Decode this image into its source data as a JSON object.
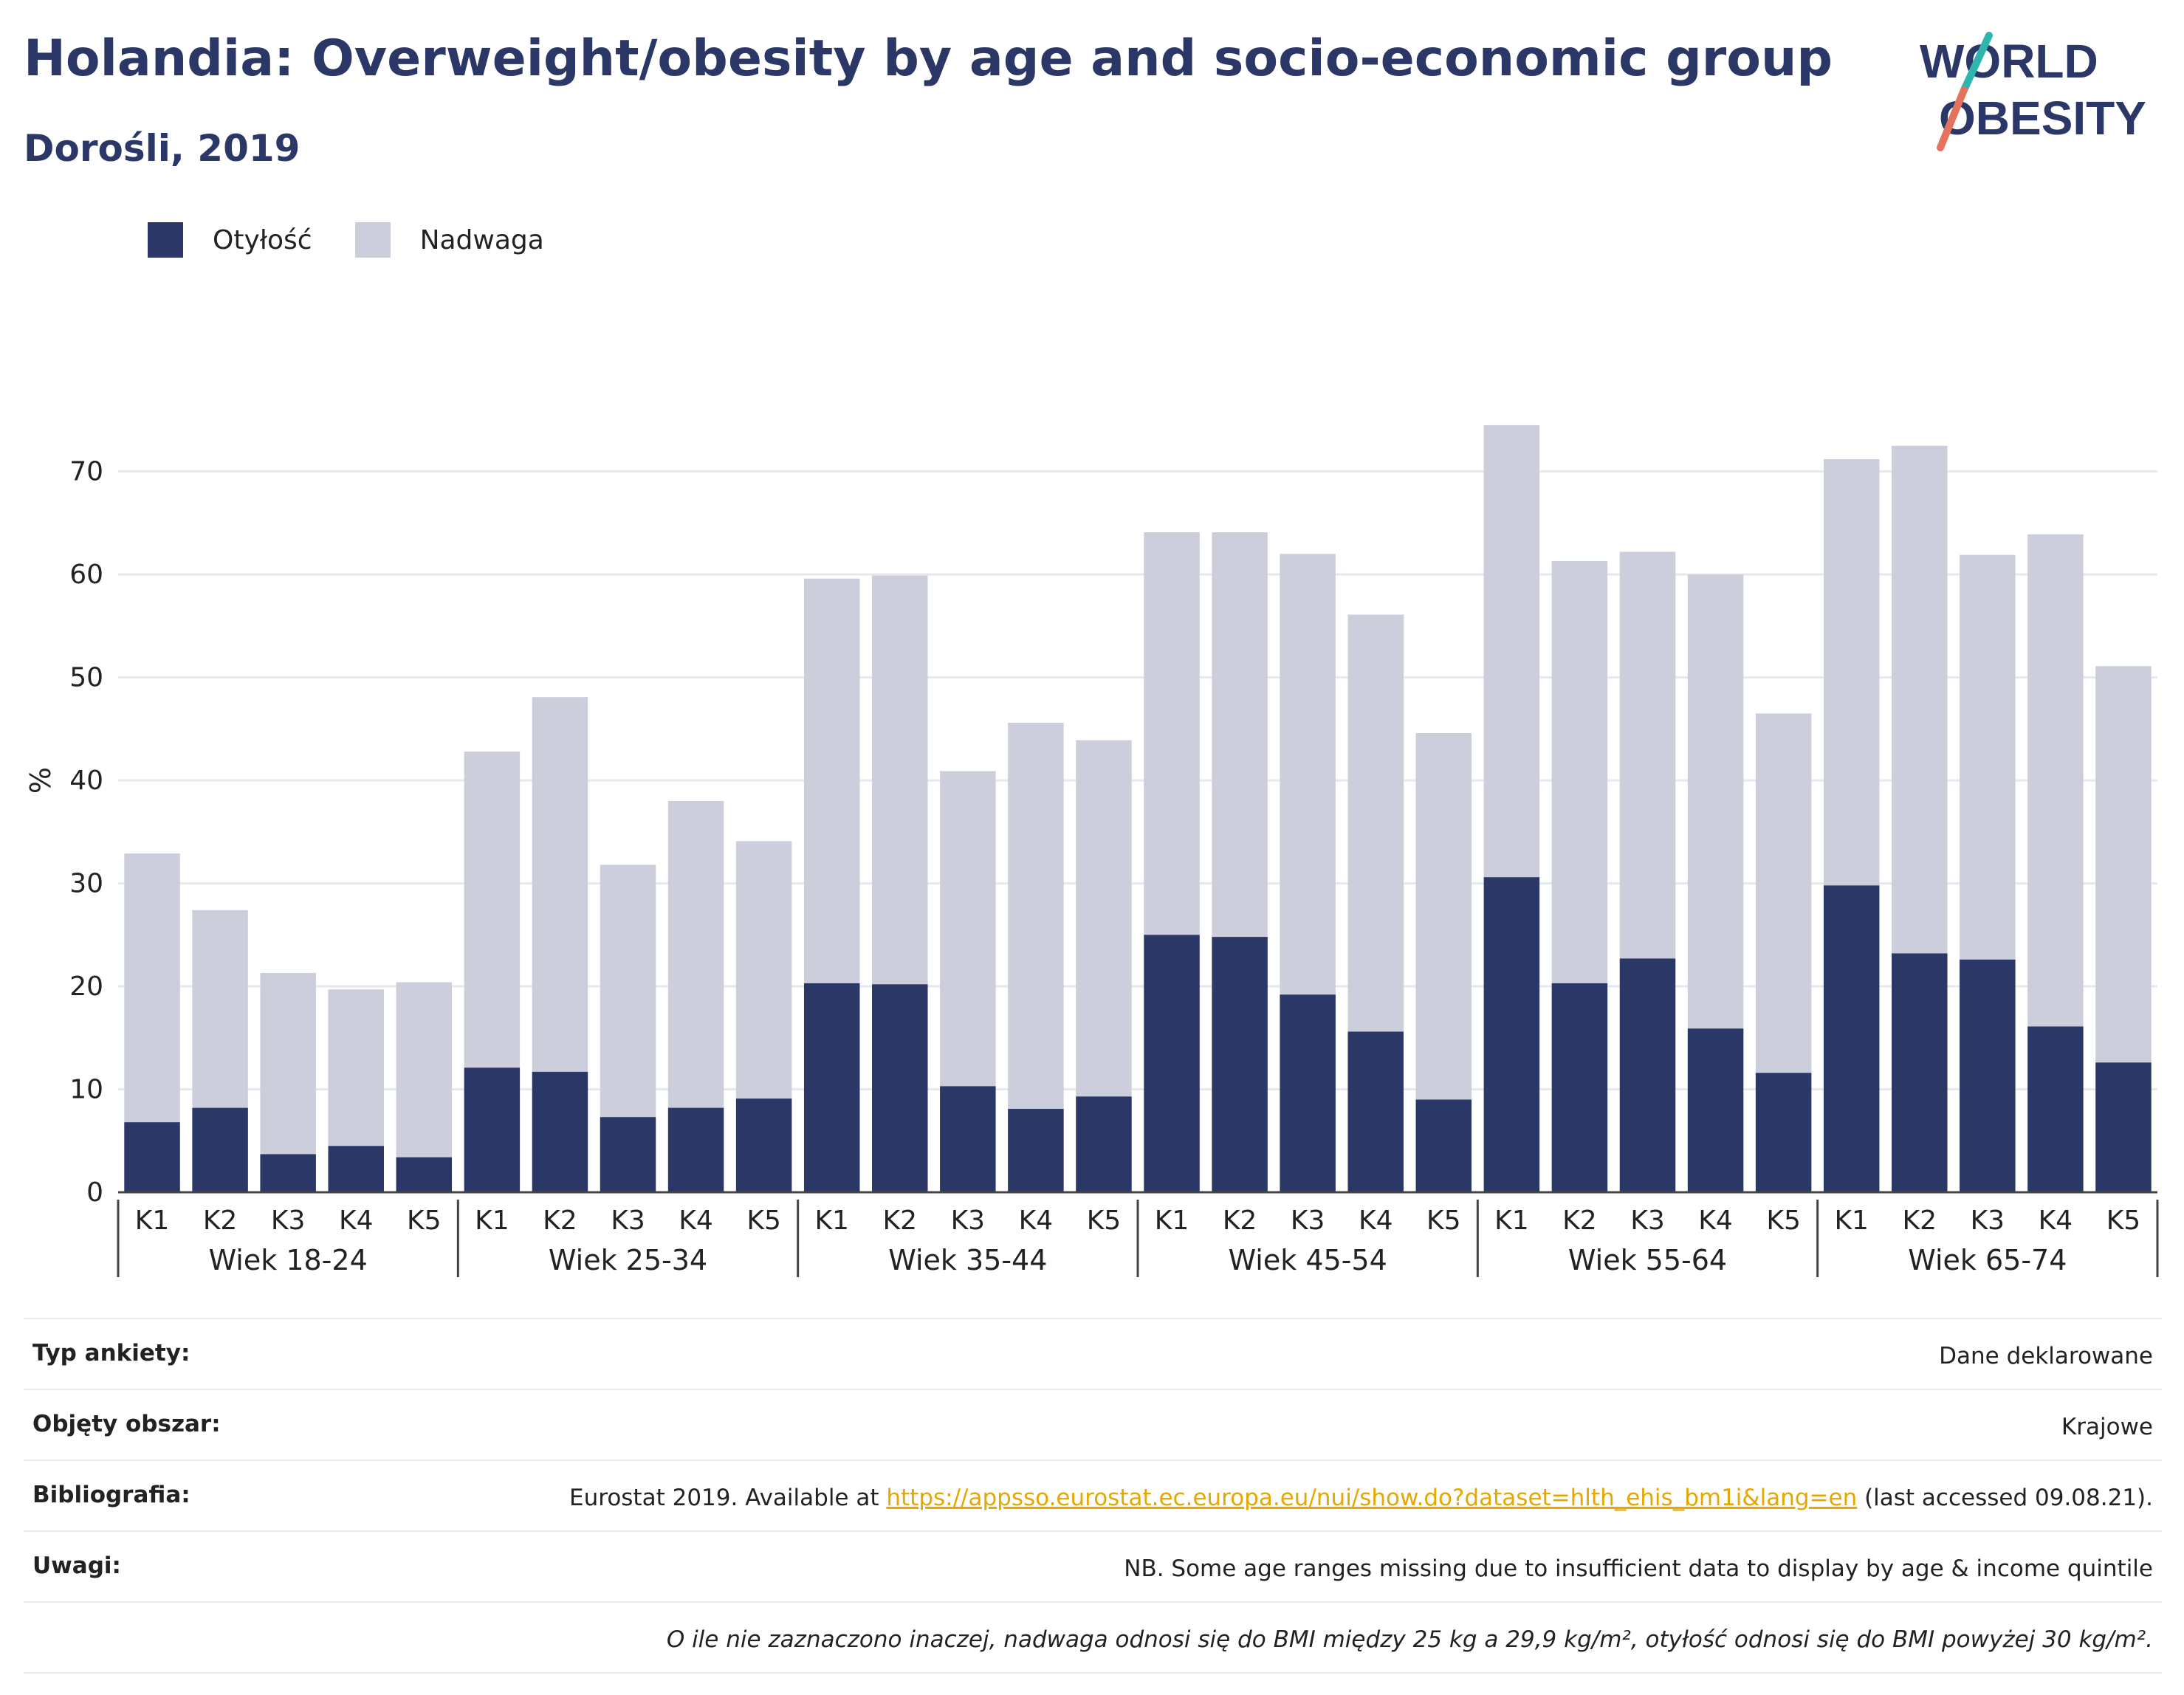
{
  "header": {
    "title": "Holandia: Overweight/obesity by age and socio-economic group",
    "subtitle": "Dorośli, 2019"
  },
  "logo": {
    "line1": "WORLD",
    "line2": "OBESITY"
  },
  "colors": {
    "obesity": "#2b3766",
    "overweight": "#cccedb",
    "grid": "#e6e8ef",
    "link": "#e6a700"
  },
  "chart_data": {
    "type": "bar",
    "stacked": true,
    "ylabel": "%",
    "ylim": [
      0,
      76
    ],
    "yticks": [
      0,
      10,
      20,
      30,
      40,
      50,
      60,
      70
    ],
    "grid": true,
    "legend": "top-left",
    "categories": [
      "K1",
      "K2",
      "K3",
      "K4",
      "K5"
    ],
    "groups": [
      {
        "label": "Wiek 18-24",
        "obesity": [
          6.8,
          8.2,
          3.7,
          4.5,
          3.4
        ],
        "total": [
          32.9,
          27.4,
          21.3,
          19.7,
          20.4
        ]
      },
      {
        "label": "Wiek 25-34",
        "obesity": [
          12.1,
          11.7,
          7.3,
          8.2,
          9.1
        ],
        "total": [
          42.8,
          48.1,
          31.8,
          38.0,
          34.1
        ]
      },
      {
        "label": "Wiek 35-44",
        "obesity": [
          20.3,
          20.2,
          10.3,
          8.1,
          9.3
        ],
        "total": [
          59.6,
          59.9,
          40.9,
          45.6,
          43.9
        ]
      },
      {
        "label": "Wiek 45-54",
        "obesity": [
          25.0,
          24.8,
          19.2,
          15.6,
          9.0
        ],
        "total": [
          64.1,
          64.1,
          62.0,
          56.1,
          44.6
        ]
      },
      {
        "label": "Wiek 55-64",
        "obesity": [
          30.6,
          20.3,
          22.7,
          15.9,
          11.6
        ],
        "total": [
          74.5,
          61.3,
          62.2,
          60.0,
          46.5
        ]
      },
      {
        "label": "Wiek 65-74",
        "obesity": [
          29.8,
          23.2,
          22.6,
          16.1,
          12.6
        ],
        "total": [
          71.2,
          72.5,
          61.9,
          63.9,
          51.1
        ]
      }
    ],
    "series": [
      {
        "name": "Otyłość"
      },
      {
        "name": "Nadwaga"
      }
    ]
  },
  "info": {
    "survey_label": "Typ ankiety:",
    "survey_value": "Dane deklarowane",
    "area_label": "Objęty obszar:",
    "area_value": "Krajowe",
    "bib_label": "Bibliografia:",
    "bib_prefix": "Eurostat 2019. Available at ",
    "bib_link": "https://appsso.eurostat.ec.europa.eu/nui/show.do?dataset=hlth_ehis_bm1i&lang=en",
    "bib_suffix": " (last accessed 09.08.21).",
    "notes_label": "Uwagi:",
    "notes_value": "NB. Some age ranges missing due to insufficient data to display by age & income quintile",
    "footnote": "O ile nie zaznaczono inaczej, nadwaga odnosi się do BMI między 25 kg a 29,9 kg/m², otyłość odnosi się do BMI powyżej 30 kg/m²."
  }
}
